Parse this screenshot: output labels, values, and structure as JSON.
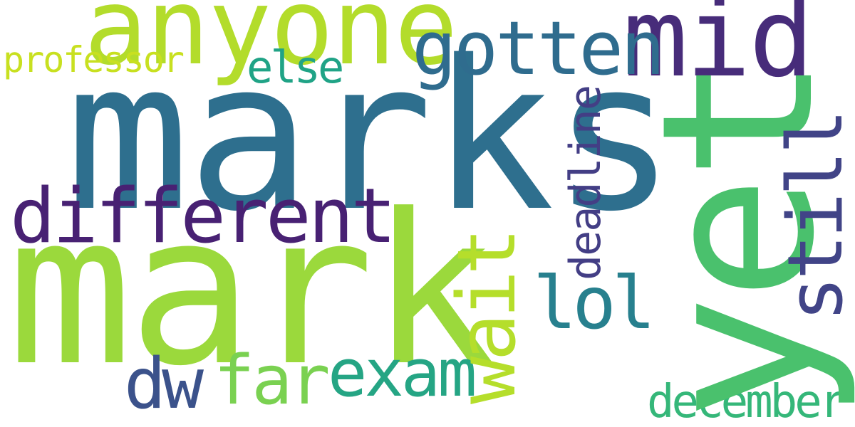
{
  "word_cloud": {
    "background": "#ffffff",
    "words": {
      "marks": {
        "text": "marks",
        "color": "#2e6f8e",
        "orientation": "horizontal"
      },
      "mark": {
        "text": "mark",
        "color": "#9bd93c",
        "orientation": "horizontal"
      },
      "yet": {
        "text": "yet",
        "color": "#4ac16d",
        "orientation": "vertical"
      },
      "anyone": {
        "text": "anyone",
        "color": "#b3dc2b",
        "orientation": "horizontal"
      },
      "mid": {
        "text": "mid",
        "color": "#472c7a",
        "orientation": "horizontal"
      },
      "gotten": {
        "text": "gotten",
        "color": "#2f6c8e",
        "orientation": "horizontal"
      },
      "still": {
        "text": "still",
        "color": "#414487",
        "orientation": "vertical"
      },
      "different": {
        "text": "different",
        "color": "#482173",
        "orientation": "horizontal"
      },
      "wait": {
        "text": "wait",
        "color": "#b5de2b",
        "orientation": "vertical"
      },
      "deadline": {
        "text": "deadline",
        "color": "#433e85",
        "orientation": "vertical"
      },
      "lol": {
        "text": "lol",
        "color": "#27808e",
        "orientation": "horizontal"
      },
      "exam": {
        "text": "exam",
        "color": "#25a584",
        "orientation": "horizontal"
      },
      "far": {
        "text": "far",
        "color": "#7ad151",
        "orientation": "horizontal"
      },
      "dw": {
        "text": "dw",
        "color": "#3b528b",
        "orientation": "horizontal"
      },
      "else": {
        "text": "else",
        "color": "#20a386",
        "orientation": "horizontal"
      },
      "professor": {
        "text": "professor",
        "color": "#c8e020",
        "orientation": "horizontal"
      },
      "december": {
        "text": "december",
        "color": "#35b779",
        "orientation": "horizontal"
      }
    }
  }
}
